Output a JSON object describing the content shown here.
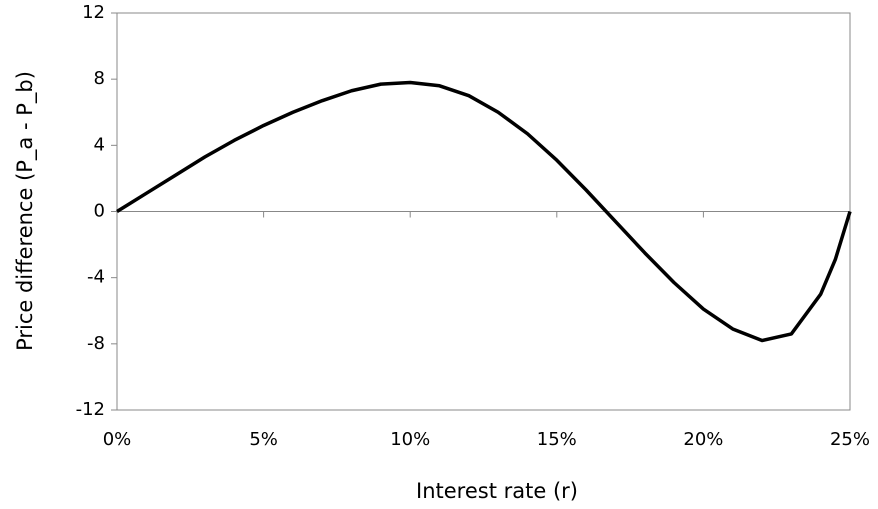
{
  "chart_data": {
    "type": "line",
    "x_label": "Interest rate (r)",
    "y_label": "Price difference (P_a - P_b)",
    "x": [
      0,
      1,
      2,
      3,
      4,
      5,
      6,
      7,
      8,
      9,
      10,
      11,
      12,
      13,
      14,
      15,
      16,
      17,
      18,
      19,
      20,
      21,
      22,
      23,
      24,
      24.5,
      25
    ],
    "series": [
      {
        "color": "#000000",
        "values": [
          0,
          1.1,
          2.2,
          3.3,
          4.3,
          5.2,
          6.0,
          6.7,
          7.3,
          7.7,
          7.8,
          7.6,
          7.0,
          6.0,
          4.7,
          3.1,
          1.3,
          -0.6,
          -2.5,
          -4.3,
          -5.9,
          -7.1,
          -7.8,
          -7.4,
          -5.0,
          -2.9,
          0
        ]
      }
    ],
    "xlim": [
      0,
      25
    ],
    "xticks": [
      {
        "value": 0,
        "label": "0%"
      },
      {
        "value": 5,
        "label": "5%"
      },
      {
        "value": 10,
        "label": "10%"
      },
      {
        "value": 15,
        "label": "15%"
      },
      {
        "value": 20,
        "label": "20%"
      },
      {
        "value": 25,
        "label": "25%"
      }
    ],
    "ylim": [
      -12,
      12
    ],
    "yticks": [
      -12,
      -8,
      -4,
      0,
      4,
      8,
      12
    ],
    "grid": false
  }
}
